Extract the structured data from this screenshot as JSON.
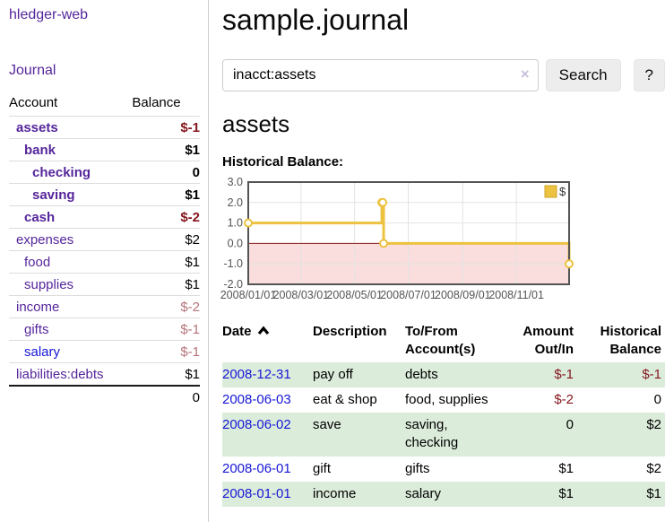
{
  "app": {
    "title": "hledger-web"
  },
  "colors": {
    "link-purple": "#55269b",
    "link-blue": "#1717d6",
    "neg-strong": "#84161d",
    "neg-dim": "#b4737a",
    "row-green": "#dcecdb",
    "accent-gold": "#edc240",
    "divider": "#cccccc"
  },
  "sidebar": {
    "journal_link": "Journal",
    "table": {
      "headers": {
        "account": "Account",
        "balance": "Balance"
      },
      "rows": [
        {
          "name": "assets",
          "indent": 1,
          "bold": true,
          "blue": false,
          "balance": "$-1",
          "balance_class": "neg-strong"
        },
        {
          "name": "bank",
          "indent": 2,
          "bold": true,
          "blue": false,
          "balance": "$1",
          "balance_class": "pos-strong"
        },
        {
          "name": "checking",
          "indent": 3,
          "bold": true,
          "blue": false,
          "balance": "0",
          "balance_class": "pos-strong"
        },
        {
          "name": "saving",
          "indent": 3,
          "bold": true,
          "blue": false,
          "balance": "$1",
          "balance_class": "pos-strong"
        },
        {
          "name": "cash",
          "indent": 2,
          "bold": true,
          "blue": false,
          "balance": "$-2",
          "balance_class": "neg-strong"
        },
        {
          "name": "expenses",
          "indent": 1,
          "bold": false,
          "blue": false,
          "balance": "$2",
          "balance_class": "pos"
        },
        {
          "name": "food",
          "indent": 2,
          "bold": false,
          "blue": false,
          "balance": "$1",
          "balance_class": "pos"
        },
        {
          "name": "supplies",
          "indent": 2,
          "bold": false,
          "blue": false,
          "balance": "$1",
          "balance_class": "pos"
        },
        {
          "name": "income",
          "indent": 1,
          "bold": false,
          "blue": false,
          "balance": "$-2",
          "balance_class": "neg-dim"
        },
        {
          "name": "gifts",
          "indent": 2,
          "bold": false,
          "blue": false,
          "balance": "$-1",
          "balance_class": "neg-dim"
        },
        {
          "name": "salary",
          "indent": 2,
          "bold": false,
          "blue": true,
          "balance": "$-1",
          "balance_class": "neg-dim"
        },
        {
          "name": "liabilities:debts",
          "indent": 1,
          "bold": false,
          "blue": false,
          "balance": "$1",
          "balance_class": "pos"
        }
      ],
      "total": "0"
    }
  },
  "header": {
    "title": "sample.journal"
  },
  "search": {
    "value": "inacct:assets",
    "clear_icon": "×",
    "button": "Search",
    "help_button": "?"
  },
  "account_page": {
    "title": "assets",
    "chart_label": "Historical Balance:"
  },
  "chart_data": {
    "type": "line",
    "step": true,
    "title": "Historical Balance",
    "x_range": [
      "2008-01-01",
      "2008-12-31"
    ],
    "ylim": [
      -2,
      3
    ],
    "yticks": [
      "3.0",
      "2.0",
      "1.0",
      "0.0",
      "-1.0",
      "-2.0"
    ],
    "xticks": [
      {
        "date": "2008-01-01",
        "label": "2008/01/01"
      },
      {
        "date": "2008-03-01",
        "label": "2008/03/01"
      },
      {
        "date": "2008-05-01",
        "label": "2008/05/01"
      },
      {
        "date": "2008-07-01",
        "label": "2008/07/01"
      },
      {
        "date": "2008-09-01",
        "label": "2008/09/01"
      },
      {
        "date": "2008-11-01",
        "label": "2008/11/01"
      }
    ],
    "series": [
      {
        "name": "$",
        "color": "#edc240",
        "points": [
          [
            "2008-01-01",
            1
          ],
          [
            "2008-06-01",
            2
          ],
          [
            "2008-06-02",
            2
          ],
          [
            "2008-06-03",
            0
          ],
          [
            "2008-12-31",
            -1
          ]
        ]
      }
    ],
    "legend_position": "top-right",
    "grid": true,
    "grid_color": "#e3e3e3",
    "border_color": "#545454",
    "tick_label_color": "#545454",
    "negative_region_color": "#fadddd",
    "zero_line_color": "#8b1a1a"
  },
  "register": {
    "sort_icon": "chevron-up",
    "headers": {
      "date": "Date",
      "description": "Description",
      "accounts": "To/From\nAccount(s)",
      "amount": "Amount\nOut/In",
      "balance": "Historical\nBalance"
    },
    "rows": [
      {
        "date": "2008-12-31",
        "description": "pay off",
        "accounts": "debts",
        "amount": "$-1",
        "amount_class": "neg",
        "balance": "$-1",
        "balance_class": "neg"
      },
      {
        "date": "2008-06-03",
        "description": "eat & shop",
        "accounts": "food, supplies",
        "amount": "$-2",
        "amount_class": "neg",
        "balance": "0",
        "balance_class": "pos"
      },
      {
        "date": "2008-06-02",
        "description": "save",
        "accounts": "saving,\nchecking",
        "amount": "0",
        "amount_class": "pos",
        "balance": "$2",
        "balance_class": "pos"
      },
      {
        "date": "2008-06-01",
        "description": "gift",
        "accounts": "gifts",
        "amount": "$1",
        "amount_class": "pos",
        "balance": "$2",
        "balance_class": "pos"
      },
      {
        "date": "2008-01-01",
        "description": "income",
        "accounts": "salary",
        "amount": "$1",
        "amount_class": "pos",
        "balance": "$1",
        "balance_class": "pos"
      }
    ]
  }
}
